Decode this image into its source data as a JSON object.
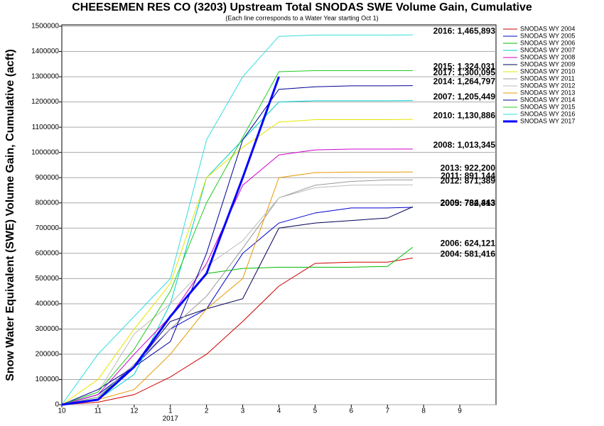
{
  "chart_data": {
    "type": "line",
    "title": "CHEESEMEN RES CO (3203) Upstream Total SNODAS SWE Volume Gain, Cumulative",
    "subtitle": "(Each line corresponds to a Water Year starting Oct 1)",
    "y_label": "Snow Water Equivalent (SWE) Volume Gain, Cumulative (acft)",
    "x_year_label": "2017",
    "x": [
      0,
      1,
      2,
      3,
      4,
      5,
      6,
      7,
      8,
      9,
      9.7
    ],
    "xlim": [
      0,
      12
    ],
    "xticks": [
      {
        "value": 0,
        "label": "10"
      },
      {
        "value": 1,
        "label": "11"
      },
      {
        "value": 2,
        "label": "12"
      },
      {
        "value": 3,
        "label": "1"
      },
      {
        "value": 4,
        "label": "2"
      },
      {
        "value": 5,
        "label": "3"
      },
      {
        "value": 6,
        "label": "4"
      },
      {
        "value": 7,
        "label": "5"
      },
      {
        "value": 8,
        "label": "6"
      },
      {
        "value": 9,
        "label": "7"
      },
      {
        "value": 10,
        "label": "8"
      },
      {
        "value": 11,
        "label": "9"
      }
    ],
    "ylim": [
      0,
      1500000
    ],
    "yticks": [
      0,
      100000,
      200000,
      300000,
      400000,
      500000,
      600000,
      700000,
      800000,
      900000,
      1000000,
      1100000,
      1200000,
      1300000,
      1400000,
      1500000
    ],
    "grid": true,
    "legend": "right",
    "series": [
      {
        "name": "SNODAS WY 2004",
        "color": "#cc0000",
        "linewidth": 1,
        "annotation": "2004: 581,416",
        "values": [
          0,
          10000,
          40000,
          110000,
          200000,
          330000,
          470000,
          560000,
          565000,
          565000,
          581416
        ]
      },
      {
        "name": "SNODAS WY 2005",
        "color": "#0000cc",
        "linewidth": 1,
        "annotation": "2005: 782,313",
        "values": [
          0,
          40000,
          150000,
          300000,
          380000,
          600000,
          720000,
          760000,
          780000,
          780000,
          782313
        ]
      },
      {
        "name": "SNODAS WY 2006",
        "color": "#00bb00",
        "linewidth": 1,
        "annotation": "2006: 624,121",
        "values": [
          0,
          30000,
          150000,
          350000,
          520000,
          540000,
          545000,
          545000,
          545000,
          548000,
          624121
        ]
      },
      {
        "name": "SNODAS WY 2007",
        "color": "#00cccc",
        "linewidth": 1,
        "annotation": "2007: 1,205,449",
        "values": [
          0,
          20000,
          120000,
          400000,
          900000,
          1050000,
          1200000,
          1205000,
          1205000,
          1205000,
          1205449
        ]
      },
      {
        "name": "SNODAS WY 2008",
        "color": "#cc00cc",
        "linewidth": 1,
        "annotation": "2008: 1,013,345",
        "values": [
          0,
          40000,
          200000,
          350000,
          560000,
          870000,
          990000,
          1010000,
          1013000,
          1013000,
          1013345
        ]
      },
      {
        "name": "SNODAS WY 2009",
        "color": "#000055",
        "linewidth": 1,
        "annotation": "2009: 784,443",
        "values": [
          0,
          20000,
          150000,
          330000,
          380000,
          420000,
          700000,
          720000,
          730000,
          740000,
          784443
        ]
      },
      {
        "name": "SNODAS WY 2010",
        "color": "#e6e600",
        "linewidth": 1,
        "annotation": "2010: 1,130,886",
        "values": [
          0,
          100000,
          300000,
          480000,
          900000,
          1020000,
          1120000,
          1130000,
          1130000,
          1130000,
          1130886
        ]
      },
      {
        "name": "SNODAS WY 2011",
        "color": "#999999",
        "linewidth": 1,
        "annotation": "2011: 891,144",
        "values": [
          0,
          30000,
          160000,
          300000,
          430000,
          620000,
          820000,
          870000,
          885000,
          891000,
          891144
        ]
      },
      {
        "name": "SNODAS WY 2012",
        "color": "#bbbbbb",
        "linewidth": 1,
        "annotation": "2012: 871,389",
        "values": [
          0,
          50000,
          280000,
          400000,
          550000,
          650000,
          820000,
          860000,
          870000,
          871000,
          871389
        ]
      },
      {
        "name": "SNODAS WY 2013",
        "color": "#e69900",
        "linewidth": 1,
        "annotation": "2013: 922,200",
        "values": [
          0,
          20000,
          60000,
          200000,
          380000,
          500000,
          900000,
          920000,
          922000,
          922000,
          922200
        ]
      },
      {
        "name": "SNODAS WY 2014",
        "color": "#000099",
        "linewidth": 1,
        "annotation": "2014: 1,264,797",
        "values": [
          0,
          60000,
          150000,
          250000,
          600000,
          1050000,
          1250000,
          1260000,
          1264000,
          1264000,
          1264797
        ]
      },
      {
        "name": "SNODAS WY 2015",
        "color": "#22cc22",
        "linewidth": 1,
        "annotation": "2015: 1,324,031",
        "values": [
          0,
          50000,
          220000,
          450000,
          800000,
          1060000,
          1320000,
          1324000,
          1324000,
          1324000,
          1324031
        ]
      },
      {
        "name": "SNODAS WY 2016",
        "color": "#33dddd",
        "linewidth": 1,
        "annotation": "2016: 1,465,893",
        "values": [
          0,
          200000,
          350000,
          500000,
          1050000,
          1300000,
          1460000,
          1465000,
          1465000,
          1465000,
          1465893
        ]
      },
      {
        "name": "SNODAS WY 2017",
        "color": "#0000ff",
        "linewidth": 3,
        "annotation": "2017: 1,300,095",
        "values": [
          0,
          20000,
          150000,
          350000,
          520000,
          900000,
          1300095,
          null,
          null,
          null,
          null
        ]
      }
    ]
  }
}
